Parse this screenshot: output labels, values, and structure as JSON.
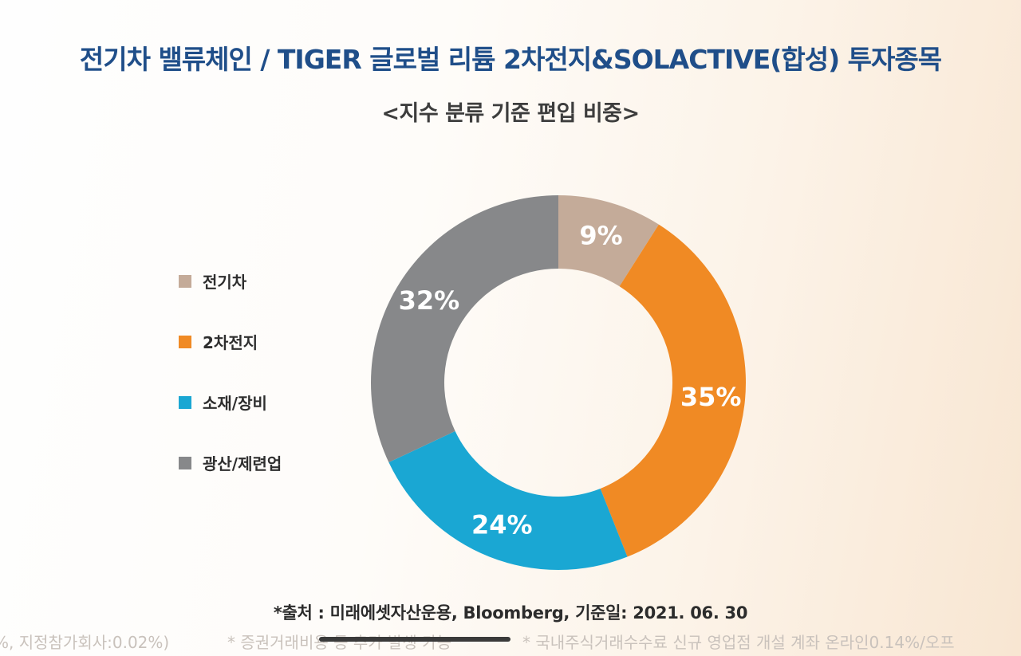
{
  "title": "전기차 밸류체인 / TIGER 글로벌 리튬 2차전지&SOLACTIVE(합성) 투자종목",
  "subtitle": "<지수 분류 기준 편입 비중>",
  "chart_data": {
    "type": "pie",
    "donut": true,
    "title": "<지수 분류 기준 편입 비중>",
    "categories": [
      "전기차",
      "2차전지",
      "소재/장비",
      "광산/제련업"
    ],
    "values": [
      9,
      35,
      24,
      32
    ],
    "labels": [
      "9%",
      "35%",
      "24%",
      "32%"
    ],
    "colors": [
      "#c4ab99",
      "#f08a24",
      "#1aa7d3",
      "#87888a"
    ],
    "legend_position": "left",
    "start_angle": "12 o'clock, clockwise"
  },
  "source": "*출처 : 미래에셋자산운용, Bloomberg, 기준일: 2021. 06. 30",
  "footer": {
    "left": "%, 지정참가회사:0.02%)",
    "middle": "* 증권거래비용 등 추가 발생 가능",
    "right": "* 국내주식거래수수료 신규 영업점 개설 계좌 온라인0.14%/오프"
  }
}
